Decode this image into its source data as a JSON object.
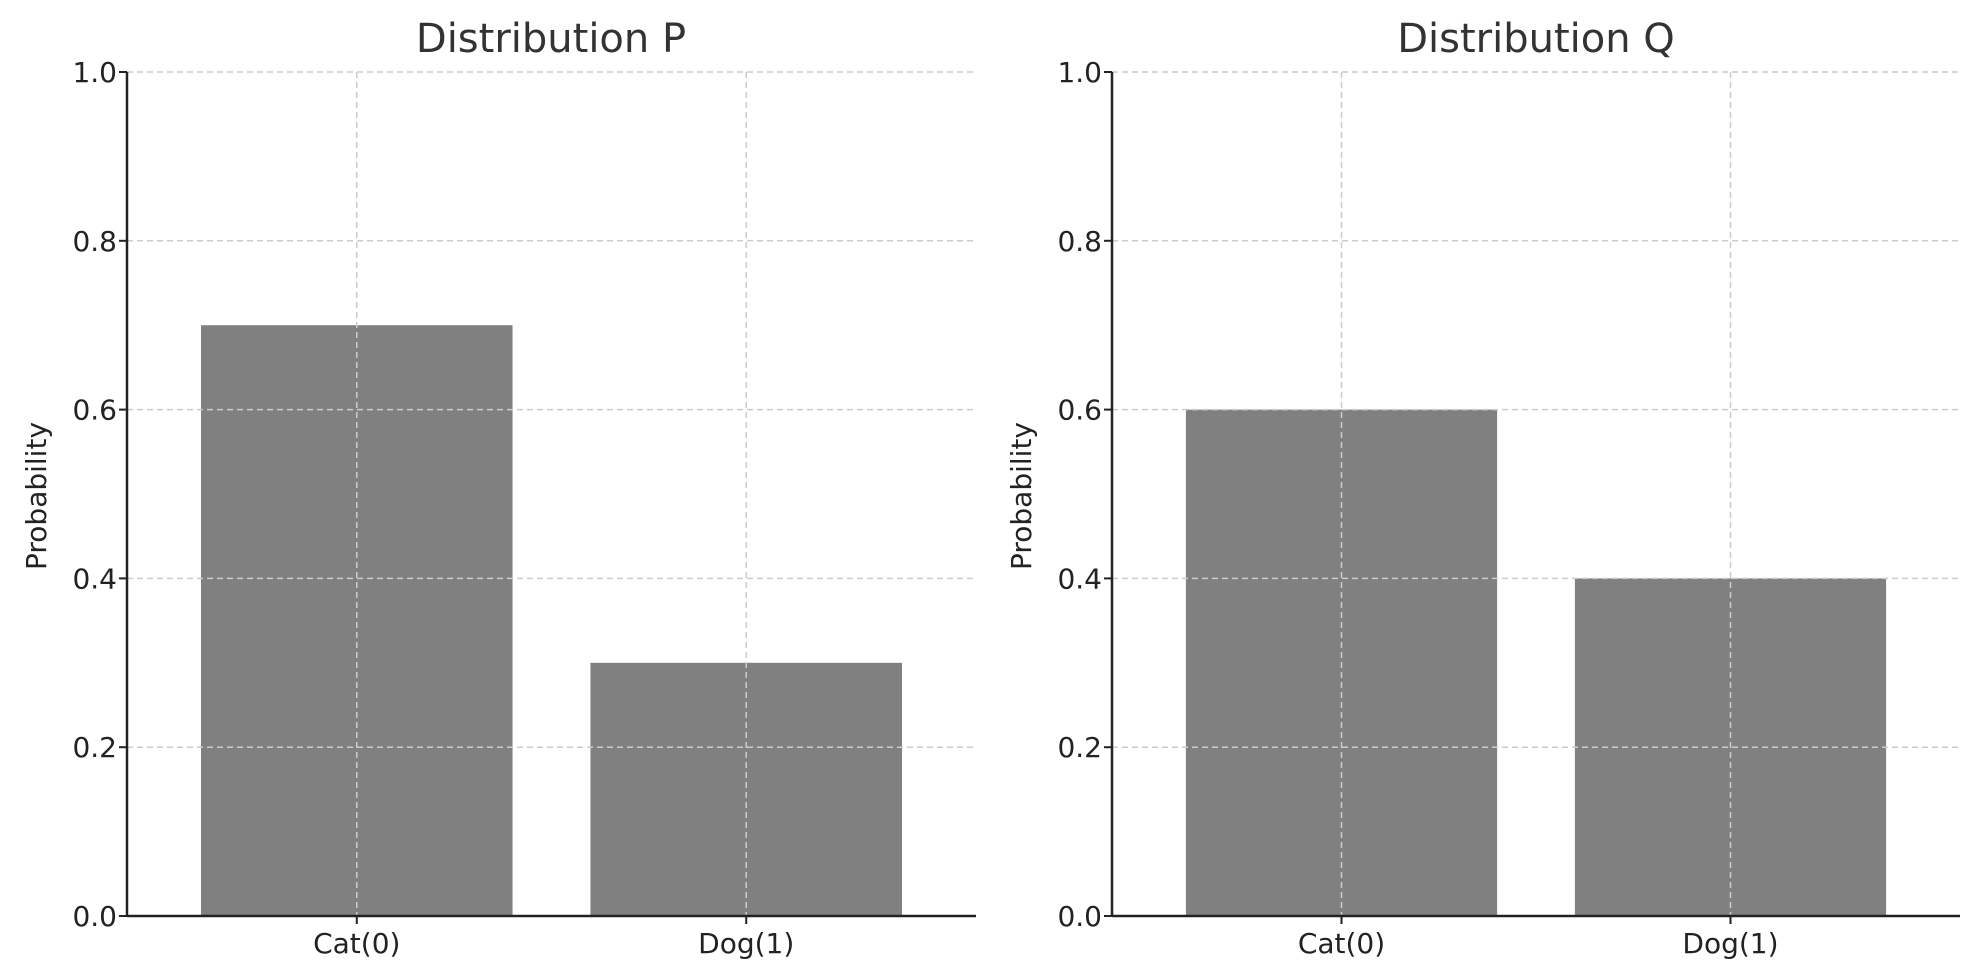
{
  "chart_data": [
    {
      "type": "bar",
      "title": "Distribution P",
      "categories": [
        "Cat(0)",
        "Dog(1)"
      ],
      "values": [
        0.7,
        0.3
      ],
      "xlabel": "",
      "ylabel": "Probability",
      "ylim": [
        0,
        1.0
      ],
      "yticks": [
        "0.0",
        "0.2",
        "0.4",
        "0.6",
        "0.8",
        "1.0"
      ],
      "grid": true,
      "bar_color": "#808080"
    },
    {
      "type": "bar",
      "title": "Distribution Q",
      "categories": [
        "Cat(0)",
        "Dog(1)"
      ],
      "values": [
        0.6,
        0.4
      ],
      "xlabel": "",
      "ylabel": "Probability",
      "ylim": [
        0,
        1.0
      ],
      "yticks": [
        "0.0",
        "0.2",
        "0.4",
        "0.6",
        "0.8",
        "1.0"
      ],
      "grid": true,
      "bar_color": "#808080"
    }
  ]
}
